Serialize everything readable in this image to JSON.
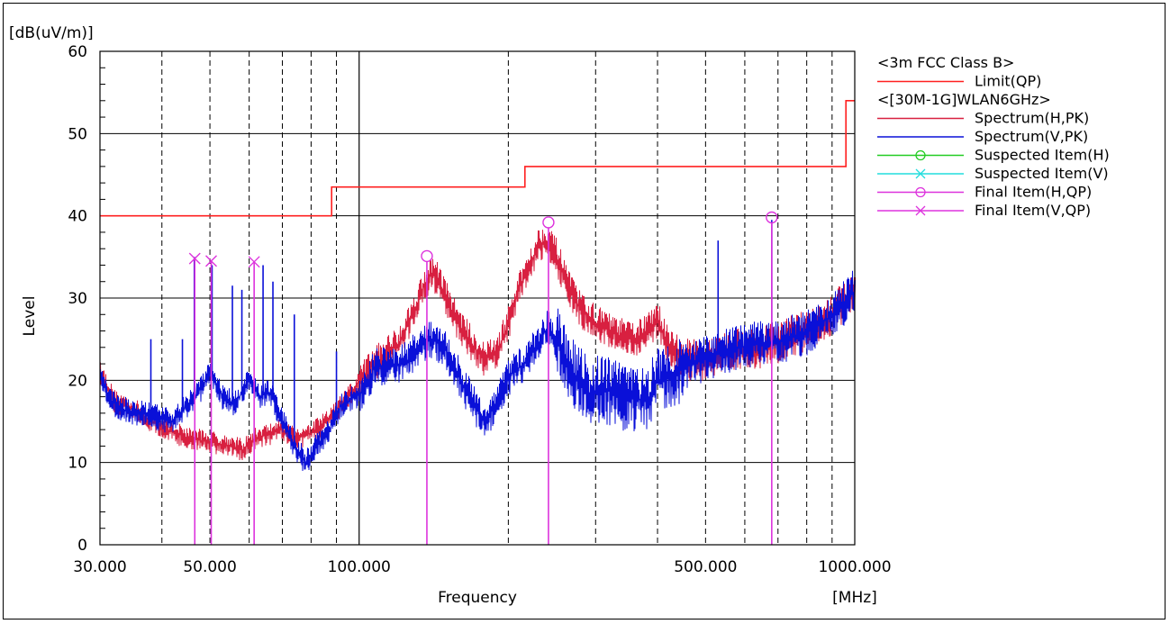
{
  "chart_data": {
    "type": "line",
    "title": "",
    "y_unit": "[dB(uV/m)]",
    "xlabel": "Frequency",
    "x_unit": "[MHz]",
    "ylabel": "Level",
    "x_scale": "log",
    "xlim": [
      30,
      1000
    ],
    "ylim": [
      0,
      60
    ],
    "grid": true,
    "x_tick_labels": [
      {
        "x": 30,
        "label": "30.000"
      },
      {
        "x": 50,
        "label": "50.000"
      },
      {
        "x": 100,
        "label": "100.000"
      },
      {
        "x": 500,
        "label": "500.000"
      },
      {
        "x": 1000,
        "label": "1000.000"
      }
    ],
    "y_ticks": [
      0,
      10,
      20,
      30,
      40,
      50,
      60
    ],
    "legend_position": "right",
    "legend": [
      {
        "label": "<3m FCC Class B>",
        "color": "",
        "marker": "",
        "header": true
      },
      {
        "label": "Limit(QP)",
        "color": "#ff2020",
        "marker": "",
        "header": false
      },
      {
        "label": "<[30M-1G]WLAN6GHz>",
        "color": "",
        "marker": "",
        "header": true
      },
      {
        "label": "Spectrum(H,PK)",
        "color": "#d82040",
        "marker": "",
        "header": false
      },
      {
        "label": "Spectrum(V,PK)",
        "color": "#0a10d8",
        "marker": "",
        "header": false
      },
      {
        "label": "Suspected Item(H)",
        "color": "#22cc22",
        "marker": "circle",
        "header": false
      },
      {
        "label": "Suspected Item(V)",
        "color": "#22dddd",
        "marker": "x",
        "header": false
      },
      {
        "label": "Final Item(H,QP)",
        "color": "#dd33dd",
        "marker": "circle",
        "header": false
      },
      {
        "label": "Final Item(V,QP)",
        "color": "#dd33dd",
        "marker": "x",
        "header": false
      }
    ],
    "limit_qp": [
      {
        "x": 30,
        "y": 40
      },
      {
        "x": 88,
        "y": 40
      },
      {
        "x": 88,
        "y": 43.5
      },
      {
        "x": 216,
        "y": 43.5
      },
      {
        "x": 216,
        "y": 46
      },
      {
        "x": 960,
        "y": 46
      },
      {
        "x": 960,
        "y": 54
      },
      {
        "x": 1000,
        "y": 54
      }
    ],
    "spectrum_h_pk": [
      {
        "x": 30,
        "y": 21
      },
      {
        "x": 32,
        "y": 17.5
      },
      {
        "x": 35,
        "y": 16.5
      },
      {
        "x": 38,
        "y": 15
      },
      {
        "x": 41,
        "y": 14
      },
      {
        "x": 45,
        "y": 13
      },
      {
        "x": 50,
        "y": 12.5
      },
      {
        "x": 55,
        "y": 12
      },
      {
        "x": 58,
        "y": 11.5
      },
      {
        "x": 62,
        "y": 13
      },
      {
        "x": 66,
        "y": 13.5
      },
      {
        "x": 70,
        "y": 14
      },
      {
        "x": 75,
        "y": 13
      },
      {
        "x": 80,
        "y": 13.5
      },
      {
        "x": 86,
        "y": 15
      },
      {
        "x": 92,
        "y": 17
      },
      {
        "x": 98,
        "y": 19
      },
      {
        "x": 105,
        "y": 21.5
      },
      {
        "x": 112,
        "y": 23
      },
      {
        "x": 120,
        "y": 24.5
      },
      {
        "x": 128,
        "y": 28
      },
      {
        "x": 135,
        "y": 31.5
      },
      {
        "x": 140,
        "y": 33
      },
      {
        "x": 145,
        "y": 32
      },
      {
        "x": 152,
        "y": 29
      },
      {
        "x": 160,
        "y": 26.5
      },
      {
        "x": 170,
        "y": 24
      },
      {
        "x": 180,
        "y": 22.5
      },
      {
        "x": 190,
        "y": 23.5
      },
      {
        "x": 200,
        "y": 27
      },
      {
        "x": 210,
        "y": 31
      },
      {
        "x": 220,
        "y": 34
      },
      {
        "x": 230,
        "y": 36.5
      },
      {
        "x": 240,
        "y": 37
      },
      {
        "x": 250,
        "y": 35
      },
      {
        "x": 265,
        "y": 31
      },
      {
        "x": 280,
        "y": 28.5
      },
      {
        "x": 300,
        "y": 27
      },
      {
        "x": 330,
        "y": 25.5
      },
      {
        "x": 360,
        "y": 25
      },
      {
        "x": 400,
        "y": 27
      },
      {
        "x": 420,
        "y": 24.5
      },
      {
        "x": 450,
        "y": 22.5
      },
      {
        "x": 500,
        "y": 22.5
      },
      {
        "x": 550,
        "y": 23.5
      },
      {
        "x": 600,
        "y": 24
      },
      {
        "x": 650,
        "y": 24
      },
      {
        "x": 700,
        "y": 24.5
      },
      {
        "x": 750,
        "y": 25.5
      },
      {
        "x": 800,
        "y": 26
      },
      {
        "x": 850,
        "y": 27
      },
      {
        "x": 900,
        "y": 28
      },
      {
        "x": 950,
        "y": 29.5
      },
      {
        "x": 1000,
        "y": 31.5
      }
    ],
    "spectrum_v_pk": [
      {
        "x": 30,
        "y": 21
      },
      {
        "x": 31,
        "y": 18
      },
      {
        "x": 33,
        "y": 16.5
      },
      {
        "x": 36,
        "y": 16
      },
      {
        "x": 39,
        "y": 15.5
      },
      {
        "x": 42,
        "y": 15
      },
      {
        "x": 45,
        "y": 17
      },
      {
        "x": 48,
        "y": 19
      },
      {
        "x": 50,
        "y": 21
      },
      {
        "x": 53,
        "y": 18
      },
      {
        "x": 56,
        "y": 17
      },
      {
        "x": 60,
        "y": 20
      },
      {
        "x": 63,
        "y": 18
      },
      {
        "x": 66,
        "y": 18.5
      },
      {
        "x": 70,
        "y": 15
      },
      {
        "x": 74,
        "y": 12
      },
      {
        "x": 78,
        "y": 10
      },
      {
        "x": 82,
        "y": 12
      },
      {
        "x": 87,
        "y": 14
      },
      {
        "x": 92,
        "y": 17
      },
      {
        "x": 98,
        "y": 18
      },
      {
        "x": 103,
        "y": 19
      },
      {
        "x": 108,
        "y": 22
      },
      {
        "x": 115,
        "y": 21.5
      },
      {
        "x": 125,
        "y": 22.5
      },
      {
        "x": 135,
        "y": 24.5
      },
      {
        "x": 142,
        "y": 25
      },
      {
        "x": 150,
        "y": 23.5
      },
      {
        "x": 160,
        "y": 20
      },
      {
        "x": 170,
        "y": 17
      },
      {
        "x": 180,
        "y": 15
      },
      {
        "x": 190,
        "y": 17.5
      },
      {
        "x": 200,
        "y": 20.5
      },
      {
        "x": 215,
        "y": 22
      },
      {
        "x": 230,
        "y": 24.5
      },
      {
        "x": 240,
        "y": 26.5
      },
      {
        "x": 255,
        "y": 24
      },
      {
        "x": 270,
        "y": 21
      },
      {
        "x": 290,
        "y": 18.5
      },
      {
        "x": 310,
        "y": 19
      },
      {
        "x": 340,
        "y": 18
      },
      {
        "x": 380,
        "y": 17.5
      },
      {
        "x": 400,
        "y": 20
      },
      {
        "x": 430,
        "y": 21
      },
      {
        "x": 470,
        "y": 22
      },
      {
        "x": 520,
        "y": 23
      },
      {
        "x": 580,
        "y": 24
      },
      {
        "x": 640,
        "y": 24.5
      },
      {
        "x": 700,
        "y": 24.5
      },
      {
        "x": 760,
        "y": 25.5
      },
      {
        "x": 820,
        "y": 26
      },
      {
        "x": 880,
        "y": 27.5
      },
      {
        "x": 940,
        "y": 29
      },
      {
        "x": 1000,
        "y": 31
      }
    ],
    "spectrum_v_spikes": [
      {
        "x": 38,
        "y": 25
      },
      {
        "x": 44,
        "y": 25
      },
      {
        "x": 46.5,
        "y": 35
      },
      {
        "x": 50.5,
        "y": 34
      },
      {
        "x": 55.5,
        "y": 31.5
      },
      {
        "x": 58,
        "y": 31
      },
      {
        "x": 64,
        "y": 34
      },
      {
        "x": 67,
        "y": 32
      },
      {
        "x": 74,
        "y": 28
      },
      {
        "x": 90,
        "y": 23.5
      },
      {
        "x": 530,
        "y": 37
      },
      {
        "x": 680,
        "y": 39.5
      }
    ],
    "final_items_h_qp": [
      {
        "x": 137,
        "y": 35.1
      },
      {
        "x": 241,
        "y": 39.2
      },
      {
        "x": 680,
        "y": 39.8
      }
    ],
    "final_items_v_qp": [
      {
        "x": 46.6,
        "y": 34.8
      },
      {
        "x": 50.3,
        "y": 34.5
      },
      {
        "x": 61.4,
        "y": 34.4
      }
    ]
  }
}
